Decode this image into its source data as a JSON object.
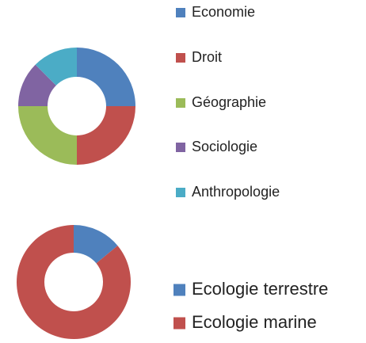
{
  "chart_data": [
    {
      "type": "pie",
      "donut": true,
      "categories": [
        "Economie",
        "Droit",
        "Géographie",
        "Sociologie",
        "Anthropologie"
      ],
      "values": [
        25,
        25,
        25,
        12.5,
        12.5
      ],
      "colors": [
        "#4f81bd",
        "#c0504d",
        "#9bbb59",
        "#8064a2",
        "#4bacc6"
      ],
      "legend": "right"
    },
    {
      "type": "pie",
      "donut": true,
      "categories": [
        "Ecologie terrestre",
        "Ecologie marine"
      ],
      "values": [
        14,
        86
      ],
      "colors": [
        "#4f81bd",
        "#c0504d"
      ],
      "legend": "right"
    }
  ]
}
